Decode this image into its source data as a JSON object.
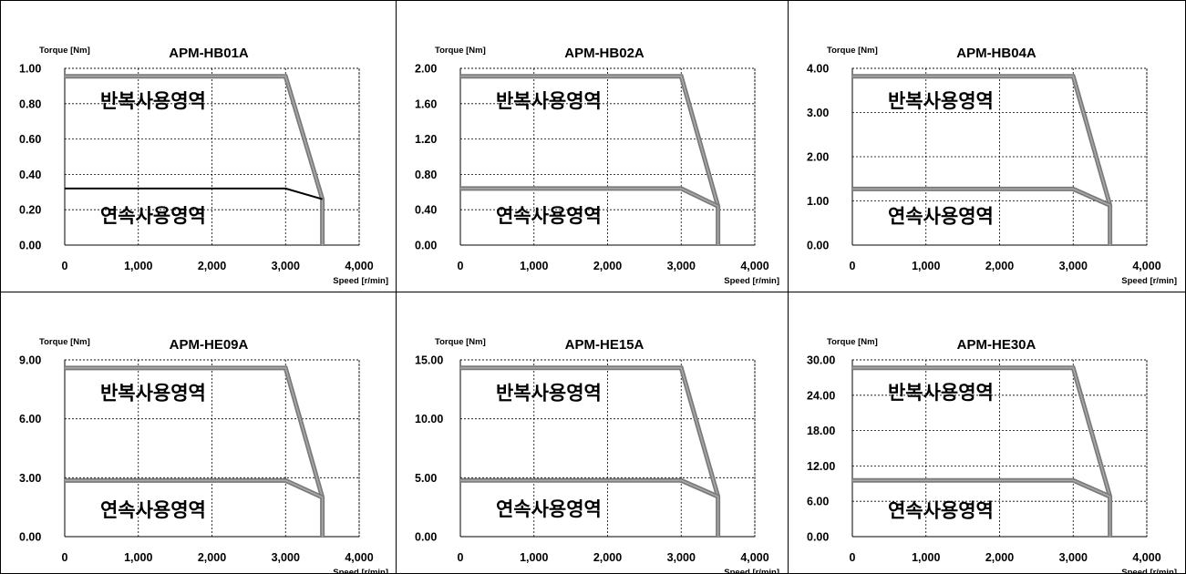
{
  "chart_data": [
    {
      "type": "line",
      "title": "APM-HB01A",
      "ylabel": "Torque [Nm]",
      "xlabel": "Speed [r/min]",
      "x_ticks": [
        "0",
        "1,000",
        "2,000",
        "3,000",
        "4,000"
      ],
      "y_ticks": [
        "0.00",
        "0.20",
        "0.40",
        "0.60",
        "0.80",
        "1.00"
      ],
      "xlim": [
        0,
        4000
      ],
      "ylim": [
        0,
        1.0
      ],
      "grid": true,
      "series": [
        {
          "style": "thick-gray",
          "x": [
            0,
            3000,
            3500,
            3500
          ],
          "y": [
            0.955,
            0.955,
            0.26,
            0
          ]
        },
        {
          "style": "thin-black",
          "x": [
            0,
            3000,
            3500
          ],
          "y": [
            0.32,
            0.32,
            0.26
          ]
        }
      ],
      "annotations": [
        {
          "text": "반복사용영역",
          "x": 1200,
          "y": 0.82
        },
        {
          "text": "연속사용영역",
          "x": 1200,
          "y": 0.17
        }
      ]
    },
    {
      "type": "line",
      "title": "APM-HB02A",
      "ylabel": "Torque [Nm]",
      "xlabel": "Speed [r/min]",
      "x_ticks": [
        "0",
        "1,000",
        "2,000",
        "3,000",
        "4,000"
      ],
      "y_ticks": [
        "0.00",
        "0.40",
        "0.80",
        "1.20",
        "1.60",
        "2.00"
      ],
      "xlim": [
        0,
        4000
      ],
      "ylim": [
        0,
        2.0
      ],
      "grid": true,
      "series": [
        {
          "style": "thick-gray",
          "x": [
            0,
            3000,
            3500,
            3500
          ],
          "y": [
            1.91,
            1.91,
            0.44,
            0
          ]
        },
        {
          "style": "thick-gray",
          "x": [
            0,
            3000,
            3500
          ],
          "y": [
            0.64,
            0.64,
            0.44
          ]
        }
      ],
      "annotations": [
        {
          "text": "반복사용영역",
          "x": 1200,
          "y": 1.64
        },
        {
          "text": "연속사용영역",
          "x": 1200,
          "y": 0.34
        }
      ]
    },
    {
      "type": "line",
      "title": "APM-HB04A",
      "ylabel": "Torque [Nm]",
      "xlabel": "Speed [r/min]",
      "x_ticks": [
        "0",
        "1,000",
        "2,000",
        "3,000",
        "4,000"
      ],
      "y_ticks": [
        "0.00",
        "1.00",
        "2.00",
        "3.00",
        "4.00"
      ],
      "xlim": [
        0,
        4000
      ],
      "ylim": [
        0,
        4.0
      ],
      "grid": true,
      "series": [
        {
          "style": "thick-gray",
          "x": [
            0,
            3000,
            3500,
            3500
          ],
          "y": [
            3.82,
            3.82,
            0.9,
            0
          ]
        },
        {
          "style": "thick-gray",
          "x": [
            0,
            3000,
            3500
          ],
          "y": [
            1.27,
            1.27,
            0.9
          ]
        }
      ],
      "annotations": [
        {
          "text": "반복사용영역",
          "x": 1200,
          "y": 3.28
        },
        {
          "text": "연속사용영역",
          "x": 1200,
          "y": 0.67
        }
      ]
    },
    {
      "type": "line",
      "title": "APM-HE09A",
      "ylabel": "Torque [Nm]",
      "xlabel": "Speed [r/min]",
      "x_ticks": [
        "0",
        "1,000",
        "2,000",
        "3,000",
        "4,000"
      ],
      "y_ticks": [
        "0.00",
        "3.00",
        "6.00",
        "9.00"
      ],
      "xlim": [
        0,
        4000
      ],
      "ylim": [
        0,
        9.0
      ],
      "grid": true,
      "series": [
        {
          "style": "thick-gray",
          "x": [
            0,
            3000,
            3500,
            3500
          ],
          "y": [
            8.59,
            8.59,
            2.0,
            0
          ]
        },
        {
          "style": "thick-gray",
          "x": [
            0,
            3000,
            3500
          ],
          "y": [
            2.86,
            2.86,
            2.0
          ]
        }
      ],
      "annotations": [
        {
          "text": "반복사용영역",
          "x": 1200,
          "y": 7.35
        },
        {
          "text": "연속사용영역",
          "x": 1200,
          "y": 1.4
        }
      ]
    },
    {
      "type": "line",
      "title": "APM-HE15A",
      "ylabel": "Torque [Nm]",
      "xlabel": "Speed [r/min]",
      "x_ticks": [
        "0",
        "1,000",
        "2,000",
        "3,000",
        "4,000"
      ],
      "y_ticks": [
        "0.00",
        "5.00",
        "10.00",
        "15.00"
      ],
      "xlim": [
        0,
        4000
      ],
      "ylim": [
        0,
        15.0
      ],
      "grid": true,
      "series": [
        {
          "style": "thick-gray",
          "x": [
            0,
            3000,
            3500,
            3500
          ],
          "y": [
            14.32,
            14.32,
            3.4,
            0
          ]
        },
        {
          "style": "thick-gray",
          "x": [
            0,
            3000,
            3500
          ],
          "y": [
            4.77,
            4.77,
            3.4
          ]
        }
      ],
      "annotations": [
        {
          "text": "반복사용영역",
          "x": 1200,
          "y": 12.25
        },
        {
          "text": "연속사용영역",
          "x": 1200,
          "y": 2.4
        }
      ]
    },
    {
      "type": "line",
      "title": "APM-HE30A",
      "ylabel": "Torque [Nm]",
      "xlabel": "Speed [r/min]",
      "x_ticks": [
        "0",
        "1,000",
        "2,000",
        "3,000",
        "4,000"
      ],
      "y_ticks": [
        "0.00",
        "6.00",
        "12.00",
        "18.00",
        "24.00",
        "30.00"
      ],
      "xlim": [
        0,
        4000
      ],
      "ylim": [
        0,
        30.0
      ],
      "grid": true,
      "series": [
        {
          "style": "thick-gray",
          "x": [
            0,
            3000,
            3500,
            3500
          ],
          "y": [
            28.65,
            28.65,
            6.8,
            0
          ]
        },
        {
          "style": "thick-gray",
          "x": [
            0,
            3000,
            3500
          ],
          "y": [
            9.55,
            9.55,
            6.8
          ]
        }
      ],
      "annotations": [
        {
          "text": "반복사용영역",
          "x": 1200,
          "y": 24.6
        },
        {
          "text": "연속사용영역",
          "x": 1200,
          "y": 4.6
        }
      ]
    }
  ]
}
